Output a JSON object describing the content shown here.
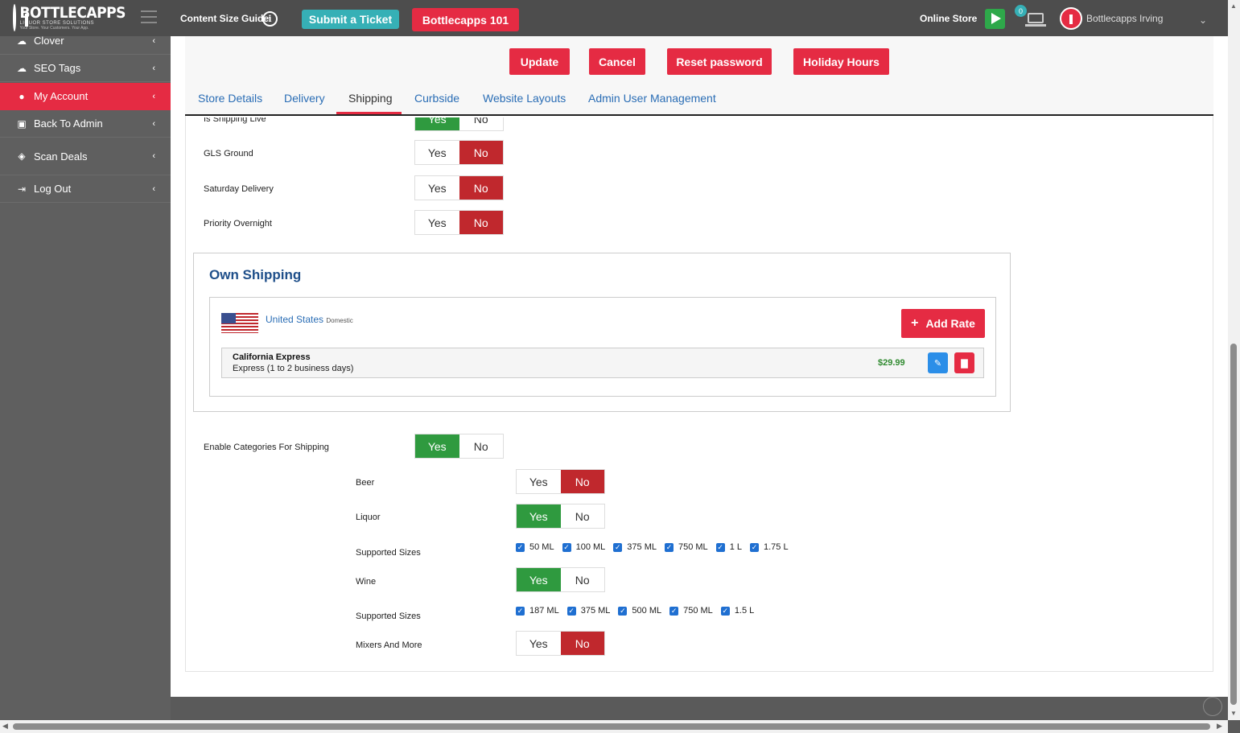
{
  "header": {
    "logo_title": "BOTTLECAPPS",
    "logo_sub": "LIQUOR STORE SOLUTIONS",
    "logo_tag": "Your Store. Your Customers. Your App.",
    "content_guide": "Content Size Guide",
    "submit_ticket": "Submit a Ticket",
    "bottlecapps_101": "Bottlecapps 101",
    "online_store": "Online Store",
    "notif_count": "0",
    "user_name": "Bottlecapps Irving"
  },
  "sidebar": {
    "items": [
      {
        "label": "Clover",
        "icon": "cloud-icon"
      },
      {
        "label": "SEO Tags",
        "icon": "cloud-icon"
      },
      {
        "label": "My Account",
        "icon": "user-icon"
      },
      {
        "label": "Back To Admin",
        "icon": "admin-icon"
      },
      {
        "label": "Scan Deals",
        "icon": "tag-icon"
      },
      {
        "label": "Log Out",
        "icon": "logout-icon"
      }
    ]
  },
  "actions": {
    "update": "Update",
    "cancel": "Cancel",
    "reset_password": "Reset password",
    "holiday_hours": "Holiday Hours"
  },
  "tabs": [
    "Store Details",
    "Delivery",
    "Shipping",
    "Curbside",
    "Website Layouts",
    "Admin User Management"
  ],
  "active_tab": "Shipping",
  "toggles": {
    "yes": "Yes",
    "no": "No",
    "is_shipping_live": {
      "label": "Is Shipping Live",
      "value": "Yes"
    },
    "gls_ground": {
      "label": "GLS Ground",
      "value": "No"
    },
    "saturday_delivery": {
      "label": "Saturday Delivery",
      "value": "No"
    },
    "priority_overnight": {
      "label": "Priority Overnight",
      "value": "No"
    }
  },
  "own_shipping": {
    "title": "Own Shipping",
    "country": "United States",
    "country_sub": "Domestic",
    "add_rate": "Add Rate",
    "rates": [
      {
        "name": "California Express",
        "desc": "Express (1 to 2 business days)",
        "price": "$29.99"
      }
    ]
  },
  "categories": {
    "enable_label": "Enable Categories For Shipping",
    "enable_value": "Yes",
    "beer": {
      "label": "Beer",
      "value": "No"
    },
    "liquor": {
      "label": "Liquor",
      "value": "Yes"
    },
    "liquor_sizes_label": "Supported Sizes",
    "liquor_sizes": [
      "50 ML",
      "100 ML",
      "375 ML",
      "750 ML",
      "1 L",
      "1.75 L"
    ],
    "wine": {
      "label": "Wine",
      "value": "Yes"
    },
    "wine_sizes_label": "Supported Sizes",
    "wine_sizes": [
      "187 ML",
      "375 ML",
      "500 ML",
      "750 ML",
      "1.5 L"
    ],
    "mixers": {
      "label": "Mixers And More",
      "value": "No"
    }
  }
}
